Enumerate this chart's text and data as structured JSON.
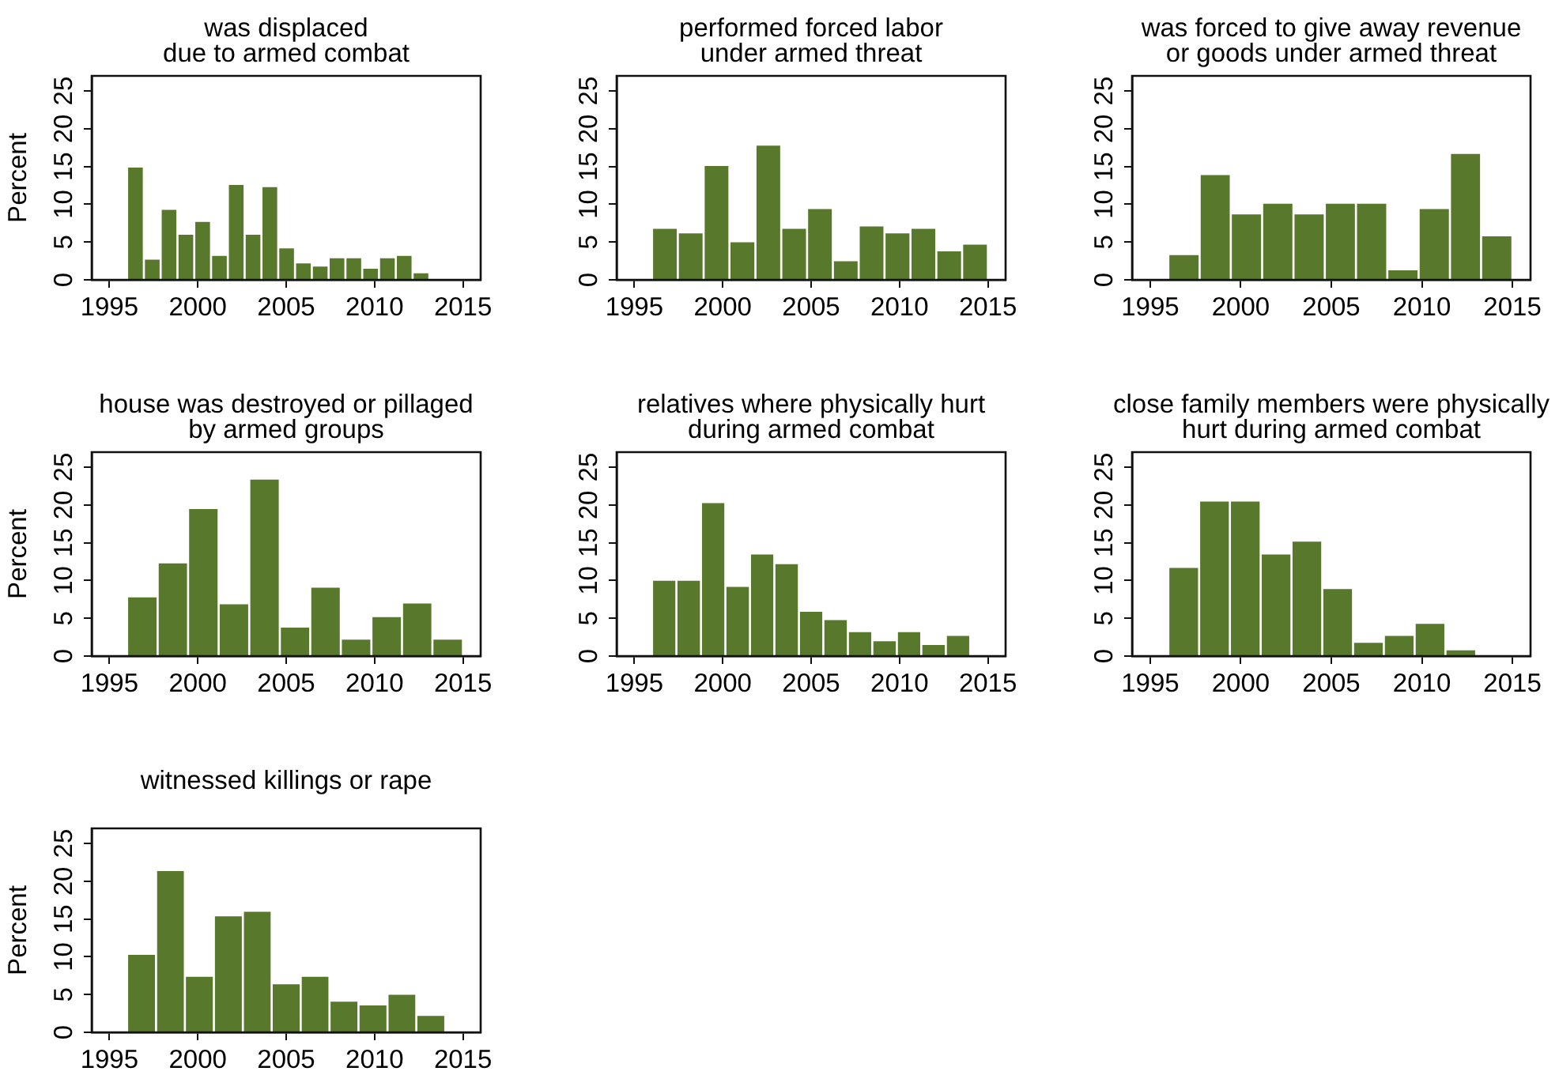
{
  "chart_data": [
    {
      "type": "histogram",
      "title": "was displaced\ndue to armed combat",
      "ylabel": "Percent",
      "bins": [
        1996,
        1996.95,
        1997.9,
        1998.85,
        1999.8,
        2000.75,
        2001.7,
        2002.65,
        2003.6,
        2004.55,
        2005.5,
        2006.45,
        2007.4,
        2008.35,
        2009.3,
        2010.25,
        2011.2,
        2012.15,
        2013.1,
        2014.05,
        2015
      ],
      "values": [
        15,
        2.8,
        9.4,
        6.1,
        7.8,
        3.3,
        12.7,
        6.1,
        12.4,
        4.3,
        2.3,
        1.9,
        3.0,
        3.0,
        1.6,
        3.0,
        3.3,
        1.0,
        0,
        0
      ],
      "color": "#58782c",
      "xlim": [
        1994,
        2016
      ],
      "ylim": [
        0,
        27
      ],
      "xticks": [
        1995,
        2000,
        2005,
        2010,
        2015
      ],
      "yticks": [
        0,
        5,
        10,
        15,
        20,
        25
      ]
    },
    {
      "type": "histogram",
      "title": "performed forced labor\nunder armed threat",
      "bins": [
        1996,
        1997.46,
        1998.92,
        2000.38,
        2001.85,
        2003.31,
        2004.77,
        2006.23,
        2007.69,
        2009.15,
        2010.62,
        2012.08,
        2013.54,
        2015
      ],
      "values": [
        6.9,
        6.3,
        15.2,
        5.1,
        17.9,
        6.9,
        9.5,
        2.6,
        7.2,
        6.3,
        6.9,
        3.9,
        4.8
      ],
      "color": "#58782c",
      "xlim": [
        1994,
        2016
      ],
      "ylim": [
        0,
        27
      ],
      "xticks": [
        1995,
        2000,
        2005,
        2010,
        2015
      ],
      "yticks": [
        0,
        5,
        10,
        15,
        20,
        25
      ]
    },
    {
      "type": "histogram",
      "title": "was forced to give away revenue\nor goods under armed threat",
      "bins": [
        1996,
        1997.73,
        1999.45,
        2001.18,
        2002.91,
        2004.64,
        2006.36,
        2008.09,
        2009.82,
        2011.55,
        2013.27,
        2015
      ],
      "values": [
        3.4,
        14.0,
        8.8,
        10.2,
        8.8,
        10.2,
        10.2,
        1.4,
        9.5,
        16.8,
        5.9
      ],
      "color": "#58782c",
      "xlim": [
        1994,
        2016
      ],
      "ylim": [
        0,
        27
      ],
      "xticks": [
        1995,
        2000,
        2005,
        2010,
        2015
      ],
      "yticks": [
        0,
        5,
        10,
        15,
        20,
        25
      ]
    },
    {
      "type": "histogram",
      "title": "house was destroyed or pillaged\nby armed groups",
      "ylabel": "Percent",
      "bins": [
        1996,
        1997.73,
        1999.45,
        2001.18,
        2002.91,
        2004.64,
        2006.36,
        2008.09,
        2009.82,
        2011.55,
        2013.27,
        2015
      ],
      "values": [
        7.9,
        12.4,
        19.6,
        7.0,
        23.5,
        3.9,
        9.2,
        2.3,
        5.3,
        7.1,
        2.3
      ],
      "color": "#58782c",
      "xlim": [
        1994,
        2016
      ],
      "ylim": [
        0,
        27
      ],
      "xticks": [
        1995,
        2000,
        2005,
        2010,
        2015
      ],
      "yticks": [
        0,
        5,
        10,
        15,
        20,
        25
      ]
    },
    {
      "type": "histogram",
      "title": "relatives where physically hurt\nduring armed combat",
      "bins": [
        1996,
        1997.38,
        1998.77,
        2000.15,
        2001.54,
        2002.92,
        2004.31,
        2005.69,
        2007.08,
        2008.46,
        2009.85,
        2011.23,
        2012.62,
        2014
      ],
      "values": [
        10.1,
        10.1,
        20.4,
        9.3,
        13.6,
        12.3,
        6.0,
        4.9,
        3.3,
        2.1,
        3.3,
        1.6,
        2.8
      ],
      "color": "#58782c",
      "xlim": [
        1994,
        2016
      ],
      "ylim": [
        0,
        27
      ],
      "xticks": [
        1995,
        2000,
        2005,
        2010,
        2015
      ],
      "yticks": [
        0,
        5,
        10,
        15,
        20,
        25
      ]
    },
    {
      "type": "histogram",
      "title": "close family members were physically\nhurt during armed combat",
      "bins": [
        1996,
        1997.7,
        1999.4,
        2001.1,
        2002.8,
        2004.5,
        2006.2,
        2007.9,
        2009.6,
        2011.3,
        2013
      ],
      "values": [
        11.8,
        20.6,
        20.6,
        13.6,
        15.3,
        9.0,
        1.9,
        2.8,
        4.4,
        0.9
      ],
      "color": "#58782c",
      "xlim": [
        1994,
        2016
      ],
      "ylim": [
        0,
        27
      ],
      "xticks": [
        1995,
        2000,
        2005,
        2010,
        2015
      ],
      "yticks": [
        0,
        5,
        10,
        15,
        20,
        25
      ]
    },
    {
      "type": "histogram",
      "title": "witnessed killings or rape",
      "ylabel": "Percent",
      "bins": [
        1996,
        1997.64,
        1999.27,
        2000.91,
        2002.55,
        2004.18,
        2005.82,
        2007.45,
        2009.09,
        2010.73,
        2012.36,
        2014
      ],
      "values": [
        10.4,
        21.5,
        7.5,
        15.5,
        16.1,
        6.5,
        7.5,
        4.2,
        3.7,
        5.1,
        2.3
      ],
      "color": "#58782c",
      "xlim": [
        1994,
        2016
      ],
      "ylim": [
        0,
        27
      ],
      "xticks": [
        1995,
        2000,
        2005,
        2010,
        2015
      ],
      "yticks": [
        0,
        5,
        10,
        15,
        20,
        25
      ]
    }
  ]
}
